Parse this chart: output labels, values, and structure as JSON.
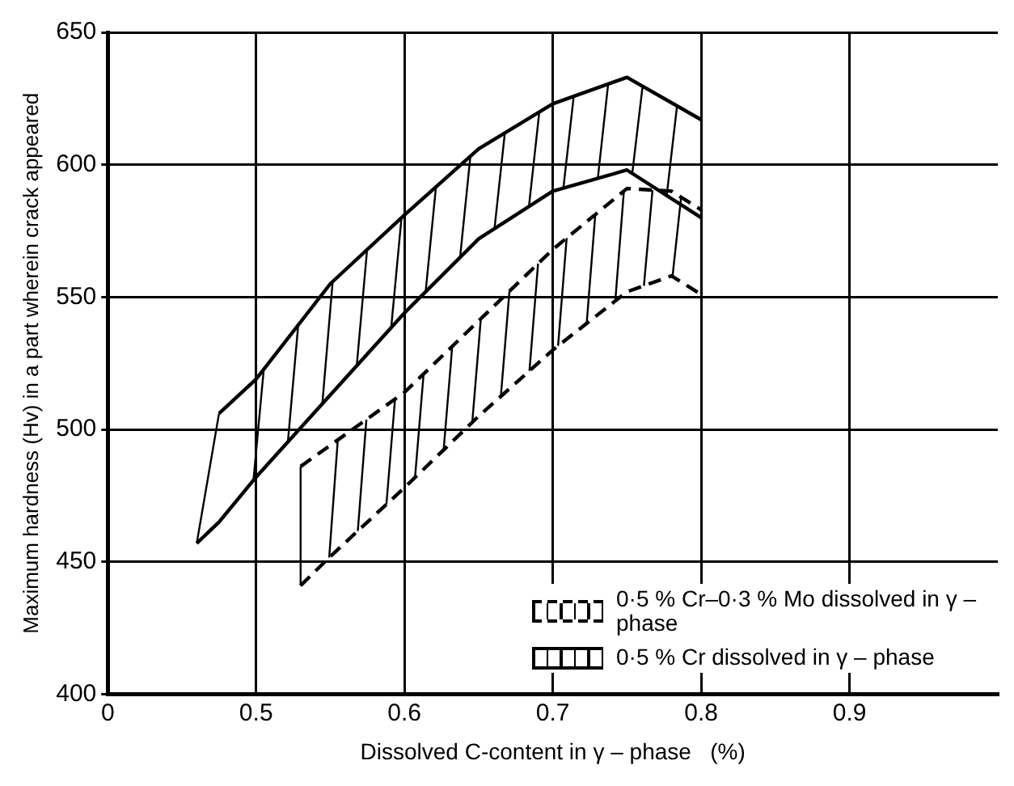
{
  "chart_data": {
    "type": "line",
    "xlabel": "Dissolved C-content in γ – phase   (%)",
    "ylabel": "Maximum hardness (Hv) in a part wherein crack appeared",
    "xlim": [
      0.4,
      1.0
    ],
    "xticks": [
      {
        "value": 0.4,
        "label": "0"
      },
      0.5,
      0.6,
      0.7,
      0.8,
      0.9
    ],
    "ylim": [
      400,
      650
    ],
    "yticks": [
      400,
      450,
      500,
      550,
      600,
      650
    ],
    "grid": true,
    "legend": "bottom right",
    "series": [
      {
        "name": "0·5 % Cr–0·3 % Mo  dissolved in γ – phase",
        "color": "#000000",
        "line_style": "dashed",
        "x": [
          0.53,
          0.55,
          0.6,
          0.65,
          0.7,
          0.75,
          0.78,
          0.8
        ],
        "values": [
          486,
          494,
          514,
          541,
          568,
          591,
          590,
          583
        ]
      },
      {
        "color": "#000000",
        "line_style": "dashed",
        "x": [
          0.53,
          0.55,
          0.6,
          0.65,
          0.7,
          0.75,
          0.78,
          0.8
        ],
        "values": [
          441,
          452,
          478,
          505,
          530,
          552,
          558,
          551
        ]
      },
      {
        "name": "0·5 % Cr dissolved in γ – phase",
        "color": "#000000",
        "line_style": "solid",
        "x": [
          0.475,
          0.5,
          0.55,
          0.6,
          0.65,
          0.7,
          0.75,
          0.8
        ],
        "values": [
          506,
          519,
          555,
          581,
          606,
          623,
          633,
          617
        ]
      },
      {
        "color": "#000000",
        "line_style": "solid",
        "x": [
          0.46,
          0.475,
          0.5,
          0.55,
          0.6,
          0.65,
          0.7,
          0.75,
          0.8
        ],
        "values": [
          457,
          465,
          482,
          513,
          544,
          572,
          590,
          598,
          580
        ]
      }
    ]
  }
}
